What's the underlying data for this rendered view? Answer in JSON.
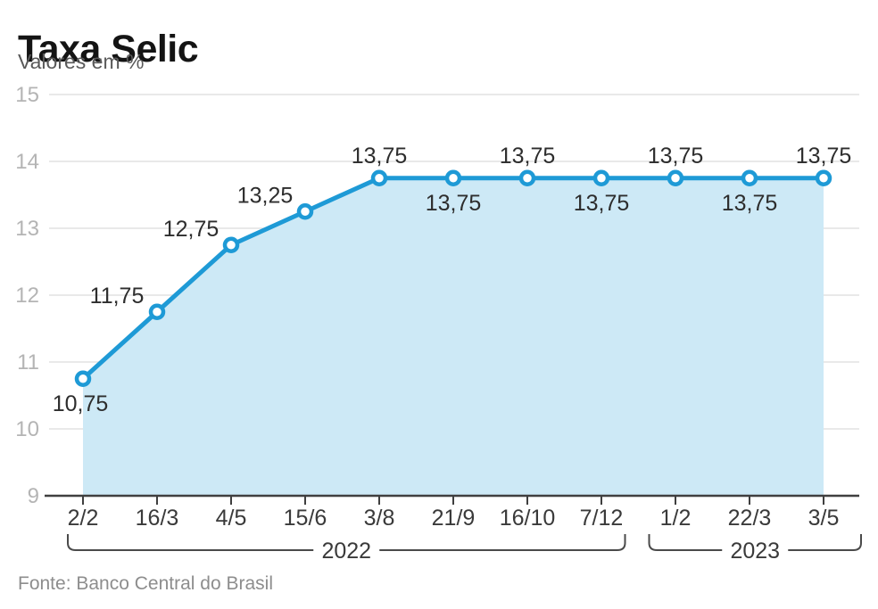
{
  "header": {
    "title": "Taxa Selic",
    "subtitle": "Valores em %"
  },
  "footer": {
    "source": "Fonte: Banco Central do Brasil"
  },
  "chart_data": {
    "type": "area",
    "title": "Taxa Selic",
    "subtitle": "Valores em %",
    "source": "Fonte: Banco Central do Brasil",
    "categories": [
      "2/2",
      "16/3",
      "4/5",
      "15/6",
      "3/8",
      "21/9",
      "16/10",
      "7/12",
      "1/2",
      "22/3",
      "3/5"
    ],
    "values": [
      10.75,
      11.75,
      12.75,
      13.25,
      13.75,
      13.75,
      13.75,
      13.75,
      13.75,
      13.75,
      13.75
    ],
    "value_labels": [
      "10,75",
      "11,75",
      "12,75",
      "13,25",
      "13,75",
      "13,75",
      "13,75",
      "13,75",
      "13,75",
      "13,75",
      "13,75"
    ],
    "label_positions": [
      "below-left",
      "above-left",
      "above-left",
      "above-left",
      "above",
      "below",
      "above",
      "below",
      "above",
      "below",
      "above"
    ],
    "ylim": [
      9,
      15
    ],
    "yticks": [
      9,
      10,
      11,
      12,
      13,
      14,
      15
    ],
    "grid": true,
    "legend": "none",
    "year_groups": [
      {
        "label": "2022",
        "from": 0,
        "to": 7
      },
      {
        "label": "2023",
        "from": 8,
        "to": 10
      }
    ],
    "colors": {
      "line": "#1e9ad6",
      "fill": "#cde9f6",
      "grid": "#e2e2e2",
      "axis": "#3f3f3f",
      "ytick_text": "#b4b4b4",
      "xtick_text": "#3a3a3a",
      "datalabel": "#2d2d2d",
      "bracket": "#4a4a4a",
      "marker_fill": "#ffffff"
    }
  }
}
